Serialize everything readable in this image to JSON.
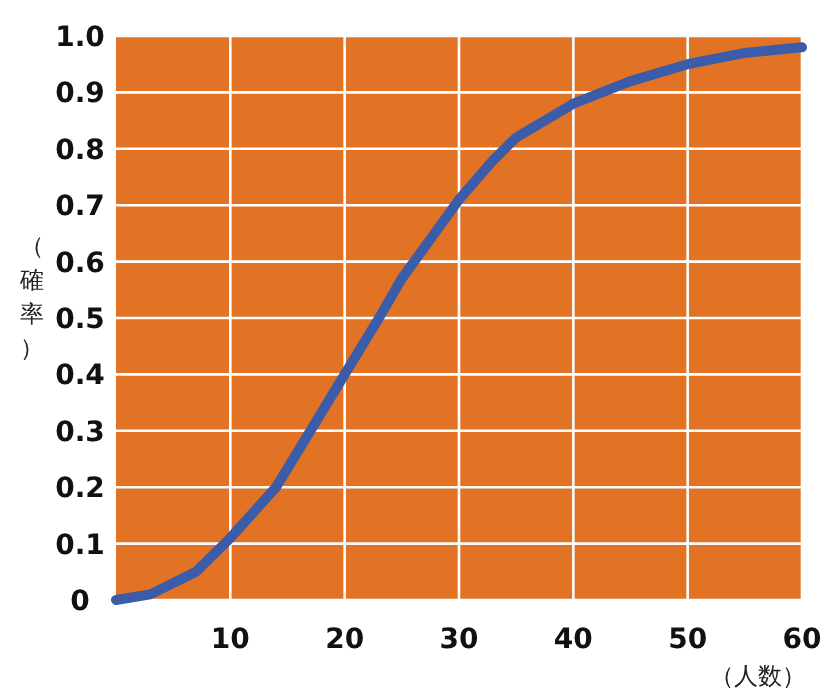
{
  "chart_data": {
    "type": "line",
    "xlabel": "（人数）",
    "ylabel": "（確率）",
    "x": [
      0,
      3,
      7,
      10,
      14,
      17,
      20,
      23,
      25,
      30,
      33,
      35,
      40,
      45,
      50,
      55,
      60
    ],
    "series": [
      {
        "color": "#3b5ca8",
        "values": [
          0,
          0.01,
          0.05,
          0.11,
          0.2,
          0.3,
          0.4,
          0.5,
          0.57,
          0.71,
          0.78,
          0.82,
          0.88,
          0.92,
          0.95,
          0.97,
          0.98
        ]
      }
    ],
    "xlim": [
      0,
      60
    ],
    "ylim": [
      0,
      1
    ],
    "xticks": [
      10,
      20,
      30,
      40,
      50,
      60
    ],
    "yticks": [
      0,
      0.1,
      0.2,
      0.3,
      0.4,
      0.5,
      0.6,
      0.7,
      0.8,
      0.9,
      {
        "value": 1,
        "label": "1.0"
      }
    ],
    "grid": true,
    "marker": "none",
    "line_style": "solid"
  }
}
